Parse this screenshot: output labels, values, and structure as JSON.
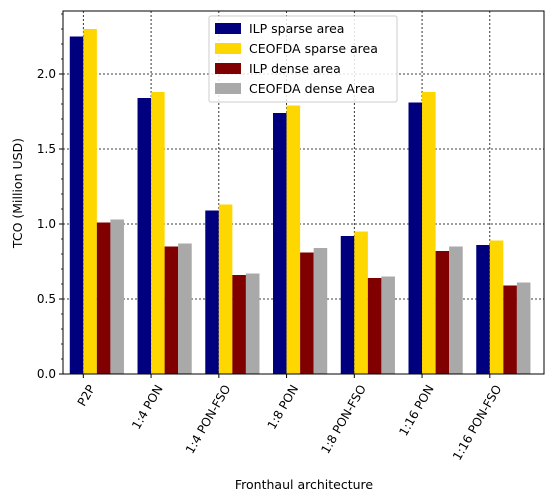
{
  "chart_data": {
    "type": "bar",
    "title": "",
    "xlabel": "Fronthaul architecture",
    "ylabel": "TCO (Million USD)",
    "ylim": [
      0,
      2.42
    ],
    "yticks": [
      0.0,
      0.5,
      1.0,
      1.5,
      2.0
    ],
    "ytick_labels": [
      "0.0",
      "0.5",
      "1.0",
      "1.5",
      "2.0"
    ],
    "grid": true,
    "legend_position": "top-center",
    "categories": [
      "P2P",
      "1:4 PON",
      "1:4 PON-FSO",
      "1:8 PON",
      "1:8 PON-FSO",
      "1:16 PON",
      "1:16 PON-FSO"
    ],
    "series": [
      {
        "name": "ILP sparse area",
        "color": "#00007f",
        "values": [
          2.25,
          1.84,
          1.09,
          1.74,
          0.92,
          1.81,
          0.86
        ]
      },
      {
        "name": "CEOFDA sparse area",
        "color": "#ffd700",
        "values": [
          2.3,
          1.88,
          1.13,
          1.79,
          0.95,
          1.88,
          0.89
        ]
      },
      {
        "name": "ILP dense area",
        "color": "#800000",
        "values": [
          1.01,
          0.85,
          0.66,
          0.81,
          0.64,
          0.82,
          0.59
        ]
      },
      {
        "name": "CEOFDA dense Area",
        "color": "#a9a9a9",
        "values": [
          1.03,
          0.87,
          0.67,
          0.84,
          0.65,
          0.85,
          0.61
        ]
      }
    ]
  }
}
